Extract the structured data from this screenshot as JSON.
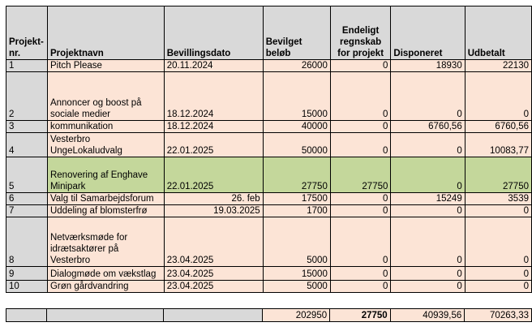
{
  "headers": {
    "nr": "Projekt-\nnr.",
    "name": "Projektnavn",
    "date": "Bevillingsdato",
    "granted": "Bevilget\nbeløb",
    "final": "Endeligt\nregnskab\nfor projekt",
    "disposed": "Disponeret",
    "paid": "Udbetalt"
  },
  "rows": [
    {
      "nr": "1",
      "name": "Pitch Please",
      "date": "20.11.2024",
      "date_align": "left",
      "granted": "26000",
      "final": "0",
      "disposed": "18930",
      "paid": "22130",
      "highlight": false
    },
    {
      "nr": "2",
      "name": "Annoncer og boost på sociale medier",
      "date": "18.12.2024",
      "date_align": "left",
      "granted": "15000",
      "final": "0",
      "disposed": "0",
      "paid": "0",
      "highlight": false
    },
    {
      "nr": "3",
      "name": "kommunikation",
      "date": "18.12.2024",
      "date_align": "left",
      "granted": "40000",
      "final": "0",
      "disposed": "6760,56",
      "paid": "6760,56",
      "highlight": false
    },
    {
      "nr": "4",
      "name": "Vesterbro UngeLokaludvalg",
      "date": "22.01.2025",
      "date_align": "left",
      "granted": "50000",
      "final": "0",
      "disposed": "0",
      "paid": "10083,77",
      "highlight": false
    },
    {
      "nr": "5",
      "name": "Renovering af Enghave Minipark",
      "date": "22.01.2025",
      "date_align": "left",
      "granted": "27750",
      "final": "27750",
      "disposed": "0",
      "paid": "27750",
      "highlight": true
    },
    {
      "nr": "6",
      "name": "Valg til Samarbejdsforum",
      "date": "26. feb",
      "date_align": "right",
      "granted": "17500",
      "final": "0",
      "disposed": "15249",
      "paid": "3539",
      "highlight": false
    },
    {
      "nr": "7",
      "name": "Uddeling af blomsterfrø",
      "date": "19.03.2025",
      "date_align": "right",
      "granted": "1700",
      "final": "0",
      "disposed": "0",
      "paid": "0",
      "highlight": false
    },
    {
      "nr": "8",
      "name": "Netværksmøde for idrætsaktører på Vesterbro",
      "date": "23.04.2025",
      "date_align": "left",
      "granted": "5000",
      "final": "0",
      "disposed": "0",
      "paid": "0",
      "highlight": false
    },
    {
      "nr": "9",
      "name": "Dialogmøde om vækstlag",
      "date": "23.04.2025",
      "date_align": "left",
      "granted": "15000",
      "final": "0",
      "disposed": "0",
      "paid": "0",
      "highlight": false
    },
    {
      "nr": "10",
      "name": "Grøn gårdvandring",
      "date": "23.04.2025",
      "date_align": "left",
      "granted": "5000",
      "final": "0",
      "disposed": "0",
      "paid": "0",
      "highlight": false
    }
  ],
  "totals": {
    "granted": "202950",
    "final": "27750",
    "disposed": "40939,56",
    "paid": "70263,33"
  },
  "colors": {
    "header_gray": "#d9d9d9",
    "row_peach": "#fce4d6",
    "row_green": "#c4d79b"
  }
}
